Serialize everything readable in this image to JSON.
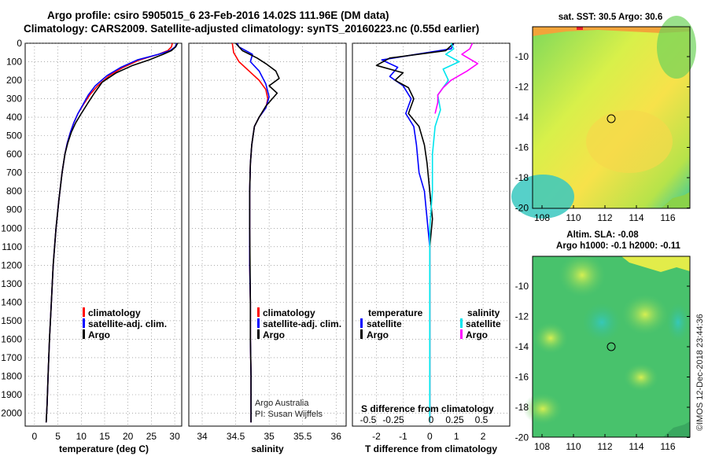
{
  "title": {
    "line1": "Argo profile: csiro 5905015_6 23-Feb-2016 14.02S 111.96E (DM data)",
    "line2": "Climatology: CARS2009. Satellite-adjusted climatology: synTS_20160223.nc (0.55d earlier)"
  },
  "colors": {
    "climatology": "#ff0000",
    "satellite": "#0000ff",
    "argo": "#000000",
    "salinity_satellite": "#00e5ee",
    "salinity_argo": "#ff00ff"
  },
  "depth_axis": {
    "ticks": [
      "0",
      "100",
      "200",
      "300",
      "400",
      "500",
      "600",
      "700",
      "800",
      "900",
      "1000",
      "1100",
      "1200",
      "1300",
      "1400",
      "1500",
      "1600",
      "1700",
      "1800",
      "1900",
      "2000"
    ],
    "ylim": [
      0,
      2070
    ]
  },
  "panels": {
    "temperature": {
      "xlabel": "temperature (deg C)",
      "xticks": [
        "0",
        "5",
        "10",
        "15",
        "20",
        "25",
        "30"
      ],
      "legend": [
        "climatology",
        "satellite-adj. clim.",
        "Argo"
      ]
    },
    "salinity": {
      "xlabel": "salinity",
      "xticks": [
        "34",
        "34.5",
        "35",
        "35.5",
        "36"
      ],
      "legend": [
        "climatology",
        "satellite-adj. clim.",
        "Argo"
      ],
      "credit1": "Argo Australia",
      "credit2": "PI: Susan Wijffels"
    },
    "difference": {
      "xlabel": "T difference from climatology",
      "xticks": [
        "-2",
        "-1",
        "0",
        "1",
        "2"
      ],
      "top_label": "S difference from climatology",
      "top_ticks": [
        "-0.5",
        "-0.25",
        "0",
        "0.25",
        "0.5"
      ],
      "legend_t_head": "temperature",
      "legend_t": [
        "satellite",
        "Argo"
      ],
      "legend_s_head": "salinity",
      "legend_s": [
        "satellite",
        "Argo"
      ]
    }
  },
  "maps": {
    "sst": {
      "title": "sat. SST: 30.5 Argo: 30.6",
      "xticks": [
        "108",
        "110",
        "112",
        "114",
        "116"
      ],
      "yticks": [
        "-10",
        "-12",
        "-14",
        "-16",
        "-18",
        "-20"
      ]
    },
    "sla": {
      "title1": "Altim. SLA: -0.08",
      "title2": "Argo h1000: -0.1 h2000: -0.11",
      "xticks": [
        "108",
        "110",
        "112",
        "114",
        "116"
      ],
      "yticks": [
        "-10",
        "-12",
        "-14",
        "-16",
        "-18",
        "-20"
      ]
    },
    "credit": "©IMOS 12-Dec-2018 23:44:36"
  },
  "chart_data": [
    {
      "type": "line",
      "name": "temperature",
      "xlabel": "temperature (deg C)",
      "ylabel": "",
      "xlim": [
        -2,
        31.5
      ],
      "ylim": [
        2070,
        0
      ],
      "series": [
        {
          "name": "climatology",
          "color": "#ff0000",
          "x": [
            29.5,
            29.3,
            28.5,
            26.5,
            22.5,
            19.0,
            16.0,
            13.5,
            11.8,
            10.5,
            9.3,
            8.4,
            7.7,
            7.0,
            6.5,
            5.9,
            5.2,
            4.6,
            4.0,
            3.6,
            3.2,
            2.9,
            2.7,
            2.5
          ],
          "y": [
            0,
            20,
            40,
            60,
            90,
            130,
            175,
            230,
            280,
            330,
            380,
            430,
            480,
            540,
            600,
            700,
            850,
            1000,
            1200,
            1400,
            1600,
            1800,
            1950,
            2050
          ]
        },
        {
          "name": "satellite-adj. clim.",
          "color": "#0000ff",
          "x": [
            30.4,
            30.1,
            29.0,
            26.5,
            22.0,
            18.5,
            15.5,
            13.0,
            11.5,
            10.4,
            9.3,
            8.4,
            7.7,
            7.0,
            6.5,
            5.9,
            5.2,
            4.6,
            4.0,
            3.6,
            3.2,
            2.9,
            2.7,
            2.5
          ],
          "y": [
            0,
            20,
            40,
            60,
            90,
            130,
            175,
            230,
            280,
            330,
            380,
            430,
            480,
            540,
            600,
            700,
            850,
            1000,
            1200,
            1400,
            1600,
            1800,
            1950,
            2050
          ]
        },
        {
          "name": "Argo",
          "color": "#000000",
          "x": [
            30.6,
            30.2,
            29.3,
            27.5,
            24.5,
            21.0,
            17.5,
            14.5,
            12.8,
            11.5,
            10.0,
            8.8,
            7.9,
            7.1,
            6.5,
            5.9,
            5.2,
            4.6,
            4.0,
            3.6,
            3.2,
            2.9,
            2.7,
            2.5
          ],
          "y": [
            0,
            20,
            40,
            60,
            90,
            120,
            160,
            210,
            270,
            320,
            380,
            430,
            480,
            540,
            600,
            700,
            850,
            1000,
            1200,
            1400,
            1600,
            1800,
            1950,
            2050
          ]
        }
      ]
    },
    {
      "type": "line",
      "name": "salinity",
      "xlabel": "salinity",
      "ylabel": "",
      "xlim": [
        33.8,
        36.15
      ],
      "ylim": [
        2070,
        0
      ],
      "series": [
        {
          "name": "climatology",
          "color": "#ff0000",
          "x": [
            34.45,
            34.47,
            34.55,
            34.7,
            34.85,
            34.95,
            34.98,
            34.95,
            34.85,
            34.78,
            34.74,
            34.72,
            34.71,
            34.71,
            34.71,
            34.72,
            34.72,
            34.73,
            34.73
          ],
          "y": [
            0,
            50,
            100,
            150,
            200,
            250,
            300,
            350,
            400,
            450,
            550,
            650,
            800,
            1000,
            1200,
            1400,
            1600,
            1800,
            2050
          ]
        },
        {
          "name": "satellite-adj. clim.",
          "color": "#0000ff",
          "x": [
            34.52,
            34.55,
            34.75,
            34.72,
            34.85,
            34.95,
            35.0,
            34.95,
            34.85,
            34.78,
            34.74,
            34.72,
            34.71,
            34.71,
            34.71,
            34.72,
            34.72,
            34.73,
            34.73
          ],
          "y": [
            0,
            20,
            60,
            100,
            150,
            220,
            290,
            350,
            400,
            450,
            550,
            650,
            800,
            1000,
            1200,
            1400,
            1600,
            1800,
            2050
          ]
        },
        {
          "name": "Argo",
          "color": "#000000",
          "x": [
            34.5,
            34.6,
            34.82,
            34.95,
            35.1,
            35.15,
            35.0,
            35.12,
            34.95,
            34.85,
            34.78,
            34.74,
            34.72,
            34.71,
            34.71,
            34.72,
            34.72,
            34.73,
            34.73
          ],
          "y": [
            0,
            40,
            80,
            110,
            150,
            190,
            230,
            270,
            340,
            400,
            450,
            550,
            650,
            800,
            1000,
            1400,
            1600,
            1800,
            2050
          ]
        }
      ]
    },
    {
      "type": "line",
      "name": "difference from climatology",
      "xlabel": "T difference from climatology",
      "xlim": [
        -2.9,
        3.0
      ],
      "ylim": [
        2070,
        0
      ],
      "series": [
        {
          "name": "satellite (T)",
          "color": "#0000ff",
          "x": [
            0.9,
            0.8,
            -0.5,
            -1.8,
            -1.2,
            -1.5,
            -1.0,
            -0.7,
            -0.9,
            -0.6,
            -0.5,
            -0.4,
            -0.2,
            -0.1,
            0.0,
            0.0,
            0.0,
            0.0
          ],
          "y": [
            0,
            30,
            60,
            90,
            130,
            180,
            230,
            300,
            380,
            450,
            550,
            700,
            800,
            950,
            1100,
            1400,
            1700,
            2050
          ]
        },
        {
          "name": "Argo (T)",
          "color": "#000000",
          "x": [
            0.9,
            0.6,
            -1.5,
            -2.0,
            -1.0,
            -1.3,
            -0.8,
            -0.6,
            -0.8,
            -0.4,
            -0.2,
            -0.1,
            0.0,
            0.1,
            0.0,
            0.0,
            0.0,
            0.0
          ],
          "y": [
            0,
            40,
            80,
            120,
            160,
            200,
            240,
            300,
            380,
            450,
            550,
            650,
            800,
            950,
            1100,
            1400,
            1700,
            2050
          ]
        },
        {
          "name": "satellite (S)",
          "color": "#00e5ee",
          "x": [
            0.8,
            0.9,
            0.6,
            1.1,
            0.5,
            0.7,
            0.3,
            0.4,
            0.2,
            0.1,
            0.1,
            0.0,
            0.0,
            0.0,
            0.0
          ],
          "y": [
            0,
            30,
            60,
            100,
            140,
            200,
            280,
            360,
            450,
            600,
            800,
            1000,
            1200,
            1600,
            2050
          ]
        },
        {
          "name": "Argo (S)",
          "color": "#ff00ff",
          "x": [
            1.6,
            1.5,
            1.2,
            1.8,
            1.4,
            0.8,
            0.5,
            0.3,
            0.3,
            0.2
          ],
          "y": [
            0,
            30,
            60,
            110,
            150,
            200,
            240,
            280,
            320,
            380
          ]
        }
      ]
    }
  ]
}
